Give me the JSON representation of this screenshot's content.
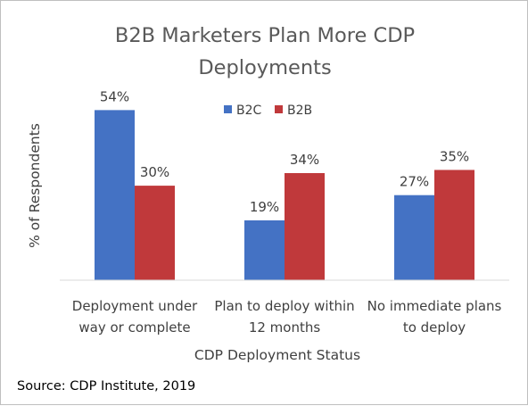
{
  "chart_data": {
    "type": "bar",
    "title_lines": [
      "B2B Marketers Plan More CDP",
      "Deployments"
    ],
    "xlabel": "CDP Deployment Status",
    "ylabel": "% of Respondents",
    "categories": [
      [
        "Deployment under",
        "way or complete"
      ],
      [
        "Plan to deploy within",
        "12 months"
      ],
      [
        "No immediate plans",
        "to deploy"
      ]
    ],
    "series": [
      {
        "name": "B2C",
        "color": "#4472c4",
        "values": [
          54,
          19,
          27
        ],
        "labels": [
          "54%",
          "19%",
          "27%"
        ]
      },
      {
        "name": "B2B",
        "color": "#c0393b",
        "values": [
          30,
          34,
          35
        ],
        "labels": [
          "30%",
          "34%",
          "35%"
        ]
      }
    ],
    "ylim": [
      0,
      60
    ],
    "grid": false,
    "legend_position": "top-center",
    "baseline_color": "#d9d9d9"
  },
  "source_text": "Source: CDP Institute, 2019"
}
